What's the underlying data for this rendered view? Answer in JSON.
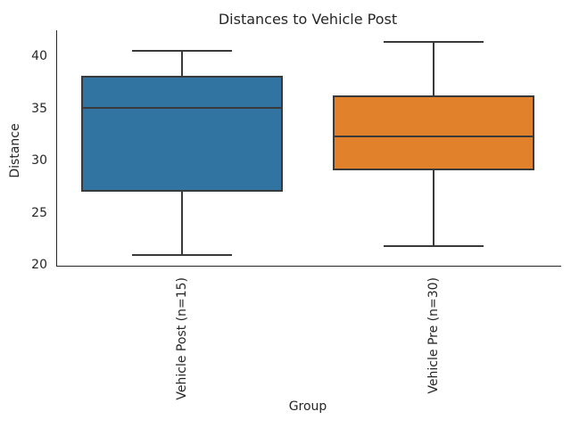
{
  "chart_data": {
    "type": "box",
    "title": "Distances to Vehicle Post",
    "xlabel": "Group",
    "ylabel": "Distance",
    "categories": [
      "Vehicle Post (n=15)",
      "Vehicle Pre (n=30)"
    ],
    "yticks": [
      20,
      25,
      30,
      35,
      40
    ],
    "ylim": [
      19.9,
      42.5
    ],
    "grid": false,
    "legend_position": "none",
    "series": [
      {
        "name": "Vehicle Post (n=15)",
        "n": 15,
        "whisker_low": 21.0,
        "q1": 27.0,
        "median": 35.1,
        "q3": 38.1,
        "whisker_high": 40.5,
        "color": "#3274a1"
      },
      {
        "name": "Vehicle Pre (n=30)",
        "n": 30,
        "whisker_low": 21.8,
        "q1": 29.1,
        "median": 32.3,
        "q3": 36.3,
        "whisker_high": 41.4,
        "color": "#e1812c"
      }
    ],
    "edge_color": "#3a3a3a",
    "text_color": "#262626",
    "background_color": "#ffffff"
  }
}
